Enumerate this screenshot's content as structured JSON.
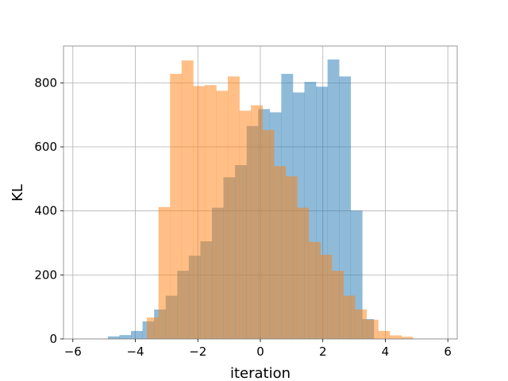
{
  "chart_data": {
    "type": "bar",
    "title": "",
    "xlabel": "iteration",
    "ylabel": "KL",
    "xlim": [
      -6.3,
      6.3
    ],
    "ylim": [
      0,
      915
    ],
    "xticks": [
      -6,
      -4,
      -2,
      0,
      2,
      4,
      6
    ],
    "yticks": [
      0,
      200,
      400,
      600,
      800
    ],
    "grid": true,
    "legend": "none",
    "series": [
      {
        "color": "#1f77b4",
        "opacity": 0.5,
        "bins": [
          {
            "x0": -4.88,
            "x1": -4.51,
            "value": 8
          },
          {
            "x0": -4.51,
            "x1": -4.14,
            "value": 12
          },
          {
            "x0": -4.14,
            "x1": -3.77,
            "value": 25
          },
          {
            "x0": -3.77,
            "x1": -3.4,
            "value": 55
          },
          {
            "x0": -3.4,
            "x1": -3.03,
            "value": 92
          },
          {
            "x0": -3.03,
            "x1": -2.66,
            "value": 135
          },
          {
            "x0": -2.66,
            "x1": -2.29,
            "value": 213
          },
          {
            "x0": -2.29,
            "x1": -1.92,
            "value": 260
          },
          {
            "x0": -1.92,
            "x1": -1.55,
            "value": 305
          },
          {
            "x0": -1.55,
            "x1": -1.18,
            "value": 410
          },
          {
            "x0": -1.18,
            "x1": -0.81,
            "value": 505
          },
          {
            "x0": -0.81,
            "x1": -0.44,
            "value": 543
          },
          {
            "x0": -0.44,
            "x1": -0.07,
            "value": 665
          },
          {
            "x0": -0.07,
            "x1": 0.3,
            "value": 718
          },
          {
            "x0": 0.3,
            "x1": 0.67,
            "value": 708
          },
          {
            "x0": 0.67,
            "x1": 1.04,
            "value": 828
          },
          {
            "x0": 1.04,
            "x1": 1.41,
            "value": 770
          },
          {
            "x0": 1.41,
            "x1": 1.78,
            "value": 803
          },
          {
            "x0": 1.78,
            "x1": 2.15,
            "value": 788
          },
          {
            "x0": 2.15,
            "x1": 2.52,
            "value": 873
          },
          {
            "x0": 2.52,
            "x1": 2.89,
            "value": 820
          },
          {
            "x0": 2.89,
            "x1": 3.26,
            "value": 401
          },
          {
            "x0": 3.26,
            "x1": 3.63,
            "value": 62
          }
        ]
      },
      {
        "color": "#ff7f0e",
        "opacity": 0.5,
        "bins": [
          {
            "x0": -3.63,
            "x1": -3.26,
            "value": 67
          },
          {
            "x0": -3.26,
            "x1": -2.89,
            "value": 412
          },
          {
            "x0": -2.89,
            "x1": -2.52,
            "value": 828
          },
          {
            "x0": -2.52,
            "x1": -2.15,
            "value": 870
          },
          {
            "x0": -2.15,
            "x1": -1.78,
            "value": 790
          },
          {
            "x0": -1.78,
            "x1": -1.41,
            "value": 793
          },
          {
            "x0": -1.41,
            "x1": -1.04,
            "value": 775
          },
          {
            "x0": -1.04,
            "x1": -0.67,
            "value": 820
          },
          {
            "x0": -0.67,
            "x1": -0.3,
            "value": 713
          },
          {
            "x0": -0.3,
            "x1": 0.07,
            "value": 730
          },
          {
            "x0": 0.07,
            "x1": 0.44,
            "value": 653
          },
          {
            "x0": 0.44,
            "x1": 0.81,
            "value": 540
          },
          {
            "x0": 0.81,
            "x1": 1.18,
            "value": 508
          },
          {
            "x0": 1.18,
            "x1": 1.55,
            "value": 410
          },
          {
            "x0": 1.55,
            "x1": 1.92,
            "value": 303
          },
          {
            "x0": 1.92,
            "x1": 2.29,
            "value": 263
          },
          {
            "x0": 2.29,
            "x1": 2.66,
            "value": 213
          },
          {
            "x0": 2.66,
            "x1": 3.03,
            "value": 135
          },
          {
            "x0": 3.03,
            "x1": 3.4,
            "value": 92
          },
          {
            "x0": 3.4,
            "x1": 3.77,
            "value": 60
          },
          {
            "x0": 3.77,
            "x1": 4.14,
            "value": 25
          },
          {
            "x0": 4.14,
            "x1": 4.51,
            "value": 11
          },
          {
            "x0": 4.51,
            "x1": 4.88,
            "value": 7
          }
        ]
      }
    ]
  }
}
